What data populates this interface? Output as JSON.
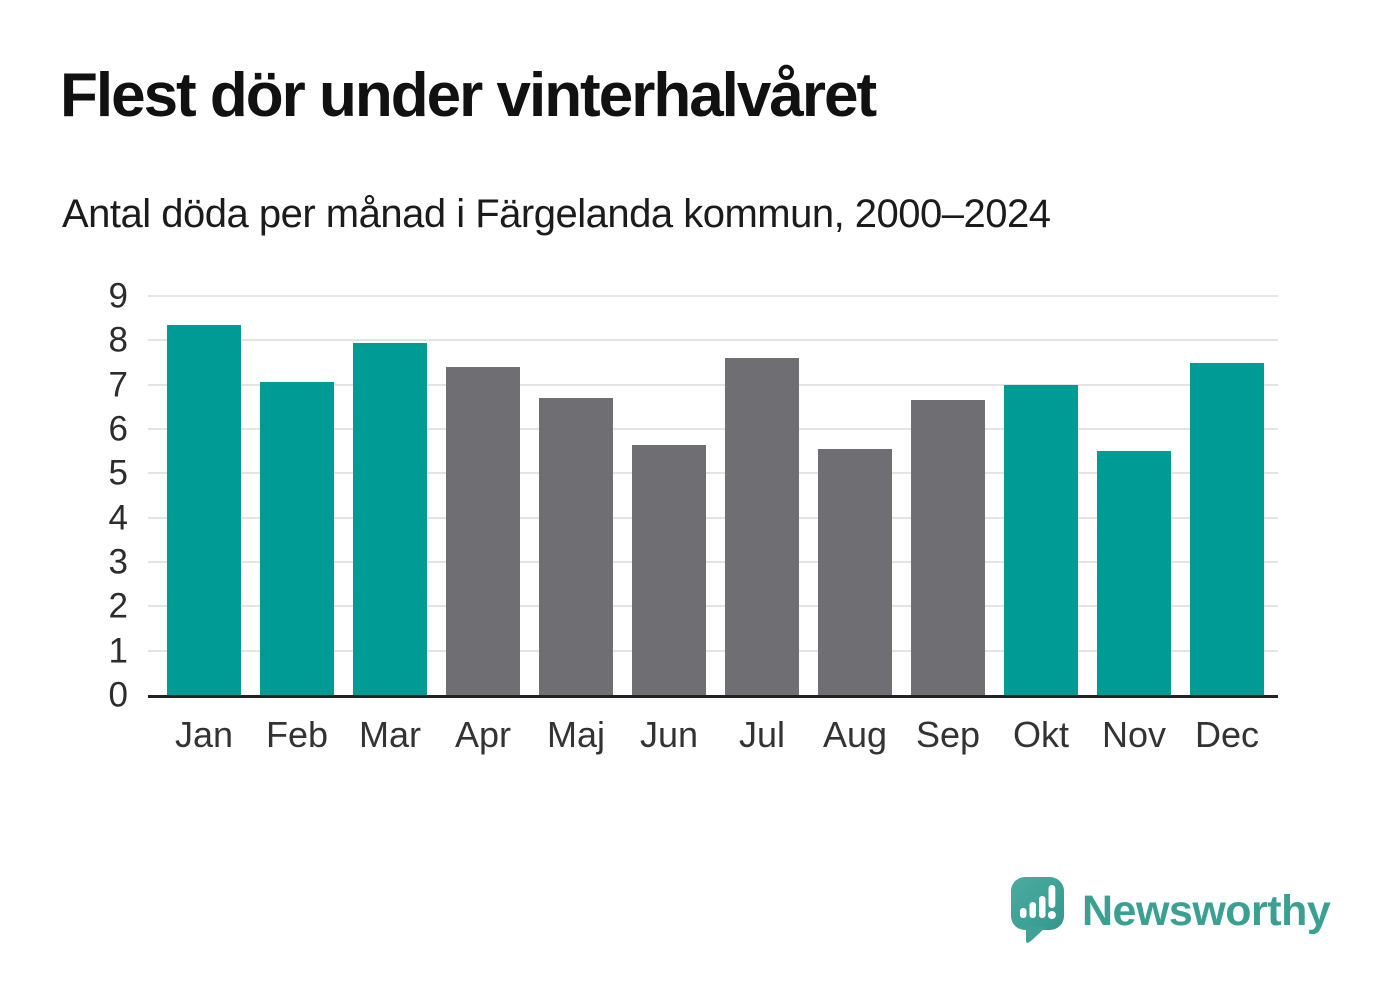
{
  "header": {
    "title": "Flest dör under vinterhalvåret",
    "subtitle": "Antal döda per månad i Färgelanda kommun, 2000–2024"
  },
  "chart_data": {
    "type": "bar",
    "title": "Flest dör under vinterhalvåret",
    "subtitle": "Antal döda per månad i Färgelanda kommun, 2000–2024",
    "categories": [
      "Jan",
      "Feb",
      "Mar",
      "Apr",
      "Maj",
      "Jun",
      "Jul",
      "Aug",
      "Sep",
      "Okt",
      "Nov",
      "Dec"
    ],
    "values": [
      8.35,
      7.05,
      7.95,
      7.4,
      6.7,
      5.65,
      7.6,
      5.55,
      6.65,
      7.0,
      5.5,
      7.5
    ],
    "bar_color_keys": [
      "teal",
      "teal",
      "teal",
      "gray",
      "gray",
      "gray",
      "gray",
      "gray",
      "gray",
      "teal",
      "teal",
      "teal"
    ],
    "colors": {
      "teal": "#019b96",
      "gray": "#6f6e73"
    },
    "xlabel": "",
    "ylabel": "",
    "ylim": [
      0,
      9
    ],
    "yticks": [
      0,
      1,
      2,
      3,
      4,
      5,
      6,
      7,
      8,
      9
    ],
    "grid": true,
    "gridline_color": "#e4e4e4",
    "axis_line_color": "#222222",
    "legend": false
  },
  "footer": {
    "brand": "Newsworthy",
    "logo_icon": "bar-chart-speech-bubble-icon",
    "brand_color": "#3aa192"
  }
}
